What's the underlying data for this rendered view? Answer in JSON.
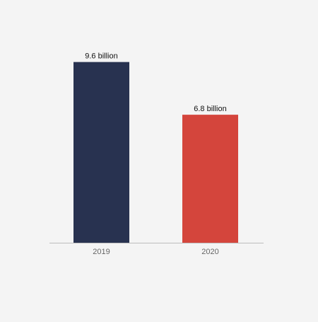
{
  "chart_data": {
    "type": "bar",
    "categories": [
      "2019",
      "2020"
    ],
    "values": [
      9.6,
      6.8
    ],
    "data_labels": [
      "9.6 billion",
      "6.8 billion"
    ],
    "unit": "billion",
    "ylim": [
      0,
      10
    ],
    "grid": false,
    "legend": "none",
    "bar_colors": [
      "#283250",
      "#d4453c"
    ],
    "background_color": "#f4f4f4",
    "axis_color": "#bdbdbd",
    "tick_label_color": "#666666",
    "value_label_color": "#111111"
  }
}
